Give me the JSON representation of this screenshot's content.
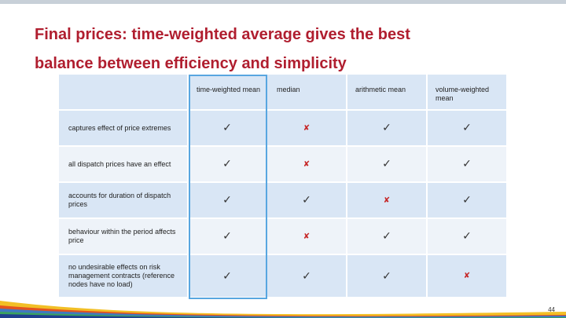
{
  "slide": {
    "title_line1": "Final prices: time-weighted average gives the best",
    "title_line2": "balance between efficiency and simplicity",
    "page_number": "44"
  },
  "table": {
    "columns": [
      "time-weighted mean",
      "median",
      "arithmetic mean",
      "volume-weighted mean"
    ],
    "rows": [
      {
        "label": "captures effect of price extremes",
        "marks": [
          "✓",
          "✘",
          "✓",
          "✓"
        ]
      },
      {
        "label": "all dispatch prices have an effect",
        "marks": [
          "✓",
          "✘",
          "✓",
          "✓"
        ]
      },
      {
        "label": "accounts for duration of dispatch prices",
        "marks": [
          "✓",
          "✓",
          "✘",
          "✓"
        ]
      },
      {
        "label": "behaviour within the period affects price",
        "marks": [
          "✓",
          "✘",
          "✓",
          "✓"
        ]
      },
      {
        "label": "no undesirable effects on risk management contracts (reference nodes have no load)",
        "marks": [
          "✓",
          "✓",
          "✓",
          "✘"
        ]
      }
    ]
  },
  "colors": {
    "title": "#b01e2f",
    "header_bg": "#d9e6f5",
    "row_light": "#eef3f9",
    "row_dark": "#d9e6f5",
    "highlight_border": "#58a6e0",
    "cross": "#c62828"
  }
}
